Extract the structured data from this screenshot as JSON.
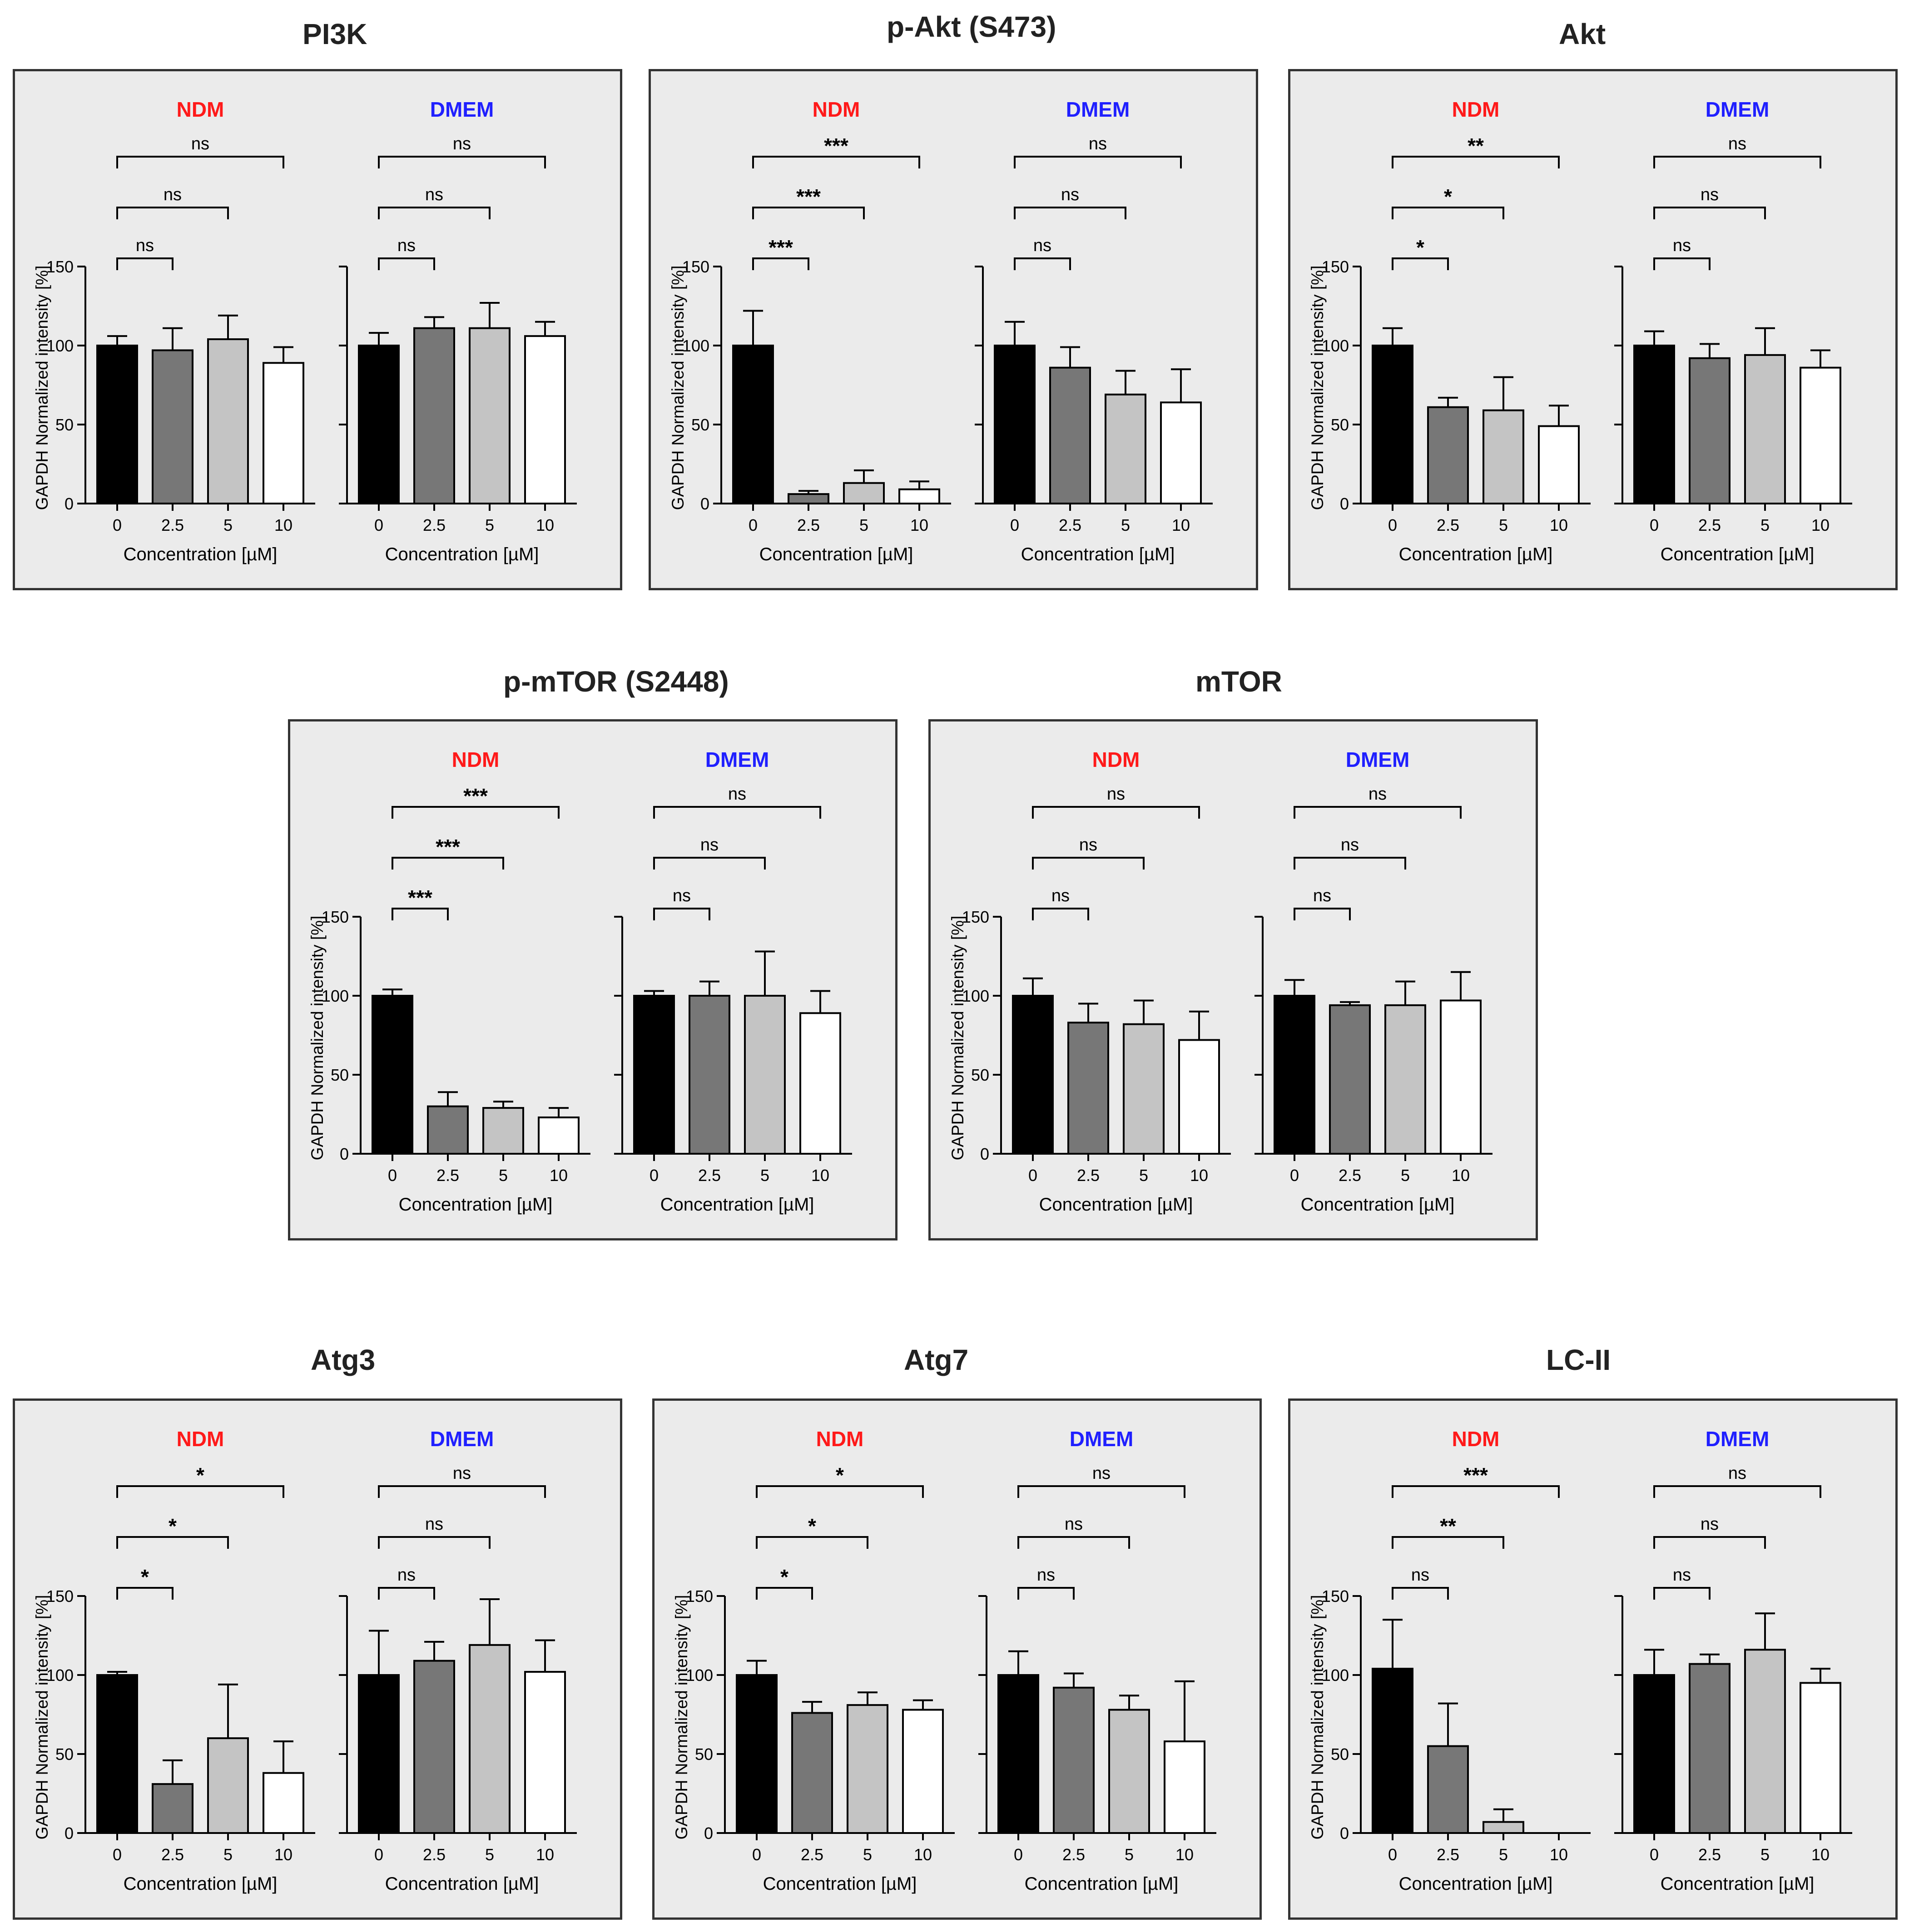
{
  "colors": {
    "background": "#ffffff",
    "panel_fill": "#ebebeb",
    "ndm_label": "#ff1a1a",
    "dmem_label": "#2020ff",
    "bar_0": "#000000",
    "bar_2_5": "#777777",
    "bar_5": "#c4c4c4",
    "bar_10": "#ffffff",
    "axis": "#000000"
  },
  "chart_data": [
    {
      "type": "bar",
      "title": "PI3K",
      "ylabel": "GAPDH Normalized intensity [%]",
      "xlabel": "Concentration [µM]",
      "ylim": [
        0,
        150
      ],
      "yticks": [
        "0",
        "50",
        "100",
        "150"
      ],
      "categories": [
        "0",
        "2.5",
        "5",
        "10"
      ],
      "groups": [
        {
          "name": "NDM",
          "values": [
            100,
            97,
            104,
            89
          ],
          "errors": [
            6,
            14,
            15,
            10
          ],
          "comparisons": [
            {
              "to": "2.5",
              "label": "ns"
            },
            {
              "to": "5",
              "label": "ns"
            },
            {
              "to": "10",
              "label": "ns"
            }
          ]
        },
        {
          "name": "DMEM",
          "values": [
            100,
            111,
            111,
            106
          ],
          "errors": [
            8,
            7,
            16,
            9
          ],
          "comparisons": [
            {
              "to": "2.5",
              "label": "ns"
            },
            {
              "to": "5",
              "label": "ns"
            },
            {
              "to": "10",
              "label": "ns"
            }
          ]
        }
      ]
    },
    {
      "type": "bar",
      "title": "p-Akt (S473)",
      "ylabel": "GAPDH Normalized intensity [%]",
      "xlabel": "Concentration [µM]",
      "ylim": [
        0,
        150
      ],
      "yticks": [
        "0",
        "50",
        "100",
        "150"
      ],
      "categories": [
        "0",
        "2.5",
        "5",
        "10"
      ],
      "groups": [
        {
          "name": "NDM",
          "values": [
            100,
            6,
            13,
            9
          ],
          "errors": [
            22,
            2,
            8,
            5
          ],
          "comparisons": [
            {
              "to": "2.5",
              "label": "***"
            },
            {
              "to": "5",
              "label": "***"
            },
            {
              "to": "10",
              "label": "***"
            }
          ]
        },
        {
          "name": "DMEM",
          "values": [
            100,
            86,
            69,
            64
          ],
          "errors": [
            15,
            13,
            15,
            21
          ],
          "comparisons": [
            {
              "to": "2.5",
              "label": "ns"
            },
            {
              "to": "5",
              "label": "ns"
            },
            {
              "to": "10",
              "label": "ns"
            }
          ]
        }
      ]
    },
    {
      "type": "bar",
      "title": "Akt",
      "ylabel": "GAPDH Normalized intensity [%]",
      "xlabel": "Concentration [µM]",
      "ylim": [
        0,
        150
      ],
      "yticks": [
        "0",
        "50",
        "100",
        "150"
      ],
      "categories": [
        "0",
        "2.5",
        "5",
        "10"
      ],
      "groups": [
        {
          "name": "NDM",
          "values": [
            100,
            61,
            59,
            49
          ],
          "errors": [
            11,
            6,
            21,
            13
          ],
          "comparisons": [
            {
              "to": "2.5",
              "label": "*"
            },
            {
              "to": "5",
              "label": "*"
            },
            {
              "to": "10",
              "label": "**"
            }
          ]
        },
        {
          "name": "DMEM",
          "values": [
            100,
            92,
            94,
            86
          ],
          "errors": [
            9,
            9,
            17,
            11
          ],
          "comparisons": [
            {
              "to": "2.5",
              "label": "ns"
            },
            {
              "to": "5",
              "label": "ns"
            },
            {
              "to": "10",
              "label": "ns"
            }
          ]
        }
      ]
    },
    {
      "type": "bar",
      "title": "p-mTOR (S2448)",
      "ylabel": "GAPDH Normalized intensity [%]",
      "xlabel": "Concentration [µM]",
      "ylim": [
        0,
        150
      ],
      "yticks": [
        "0",
        "50",
        "100",
        "150"
      ],
      "categories": [
        "0",
        "2.5",
        "5",
        "10"
      ],
      "groups": [
        {
          "name": "NDM",
          "values": [
            100,
            30,
            29,
            23
          ],
          "errors": [
            4,
            9,
            4,
            6
          ],
          "comparisons": [
            {
              "to": "2.5",
              "label": "***"
            },
            {
              "to": "5",
              "label": "***"
            },
            {
              "to": "10",
              "label": "***"
            }
          ]
        },
        {
          "name": "DMEM",
          "values": [
            100,
            100,
            100,
            89
          ],
          "errors": [
            3,
            9,
            28,
            14
          ],
          "comparisons": [
            {
              "to": "2.5",
              "label": "ns"
            },
            {
              "to": "5",
              "label": "ns"
            },
            {
              "to": "10",
              "label": "ns"
            }
          ]
        }
      ]
    },
    {
      "type": "bar",
      "title": "mTOR",
      "ylabel": "GAPDH Normalized intensity [%]",
      "xlabel": "Concentration [µM]",
      "ylim": [
        0,
        150
      ],
      "yticks": [
        "0",
        "50",
        "100",
        "150"
      ],
      "categories": [
        "0",
        "2.5",
        "5",
        "10"
      ],
      "groups": [
        {
          "name": "NDM",
          "values": [
            100,
            83,
            82,
            72
          ],
          "errors": [
            11,
            12,
            15,
            18
          ],
          "comparisons": [
            {
              "to": "2.5",
              "label": "ns"
            },
            {
              "to": "5",
              "label": "ns"
            },
            {
              "to": "10",
              "label": "ns"
            }
          ]
        },
        {
          "name": "DMEM",
          "values": [
            100,
            94,
            94,
            97
          ],
          "errors": [
            10,
            2,
            15,
            18
          ],
          "comparisons": [
            {
              "to": "2.5",
              "label": "ns"
            },
            {
              "to": "5",
              "label": "ns"
            },
            {
              "to": "10",
              "label": "ns"
            }
          ]
        }
      ]
    },
    {
      "type": "bar",
      "title": "Atg3",
      "ylabel": "GAPDH Normalized intensity [%]",
      "xlabel": "Concentration [µM]",
      "ylim": [
        0,
        150
      ],
      "yticks": [
        "0",
        "50",
        "100",
        "150"
      ],
      "categories": [
        "0",
        "2.5",
        "5",
        "10"
      ],
      "groups": [
        {
          "name": "NDM",
          "values": [
            100,
            31,
            60,
            38
          ],
          "errors": [
            2,
            15,
            34,
            20
          ],
          "comparisons": [
            {
              "to": "2.5",
              "label": "*"
            },
            {
              "to": "5",
              "label": "*"
            },
            {
              "to": "10",
              "label": "*"
            }
          ]
        },
        {
          "name": "DMEM",
          "values": [
            100,
            109,
            119,
            102
          ],
          "errors": [
            28,
            12,
            29,
            20
          ],
          "comparisons": [
            {
              "to": "2.5",
              "label": "ns"
            },
            {
              "to": "5",
              "label": "ns"
            },
            {
              "to": "10",
              "label": "ns"
            }
          ]
        }
      ]
    },
    {
      "type": "bar",
      "title": "Atg7",
      "ylabel": "GAPDH Normalized intensity [%]",
      "xlabel": "Concentration [µM]",
      "ylim": [
        0,
        150
      ],
      "yticks": [
        "0",
        "50",
        "100",
        "150"
      ],
      "categories": [
        "0",
        "2.5",
        "5",
        "10"
      ],
      "groups": [
        {
          "name": "NDM",
          "values": [
            100,
            76,
            81,
            78
          ],
          "errors": [
            9,
            7,
            8,
            6
          ],
          "comparisons": [
            {
              "to": "2.5",
              "label": "*"
            },
            {
              "to": "5",
              "label": "*"
            },
            {
              "to": "10",
              "label": "*"
            }
          ]
        },
        {
          "name": "DMEM",
          "values": [
            100,
            92,
            78,
            58
          ],
          "errors": [
            15,
            9,
            9,
            38
          ],
          "comparisons": [
            {
              "to": "2.5",
              "label": "ns"
            },
            {
              "to": "5",
              "label": "ns"
            },
            {
              "to": "10",
              "label": "ns"
            }
          ]
        }
      ]
    },
    {
      "type": "bar",
      "title": "LC-II",
      "ylabel": "GAPDH Normalized intensity [%]",
      "xlabel": "Concentration [µM]",
      "ylim": [
        0,
        150
      ],
      "yticks": [
        "0",
        "50",
        "100",
        "150"
      ],
      "categories": [
        "0",
        "2.5",
        "5",
        "10"
      ],
      "groups": [
        {
          "name": "NDM",
          "values": [
            104,
            55,
            7,
            0
          ],
          "errors": [
            31,
            27,
            8,
            0
          ],
          "comparisons": [
            {
              "to": "2.5",
              "label": "ns"
            },
            {
              "to": "5",
              "label": "**"
            },
            {
              "to": "10",
              "label": "***"
            }
          ]
        },
        {
          "name": "DMEM",
          "values": [
            100,
            107,
            116,
            95
          ],
          "errors": [
            16,
            6,
            23,
            9
          ],
          "comparisons": [
            {
              "to": "2.5",
              "label": "ns"
            },
            {
              "to": "5",
              "label": "ns"
            },
            {
              "to": "10",
              "label": "ns"
            }
          ]
        }
      ]
    }
  ]
}
